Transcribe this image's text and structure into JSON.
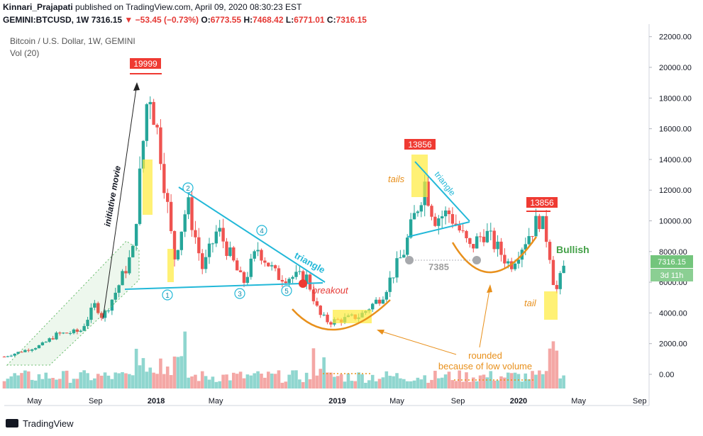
{
  "header": {
    "author": "Kinnari_Prajapati",
    "published": "published on TradingView.com, April 09, 2020 08:30:23 EST",
    "symbol": "GEMINI:BTCUSD, 1W",
    "price": "7316.15",
    "change": "▼ −53.45 (−0.73%)",
    "o_label": "O:",
    "o": "6773.55",
    "h_label": "H:",
    "h": "7468.42",
    "l_label": "L:",
    "l": "6771.01",
    "c_label": "C:",
    "c": "7316.15"
  },
  "subtitle": {
    "instrument": "Bitcoin / U.S. Dollar, 1W, GEMINI",
    "volume": "Vol (20)"
  },
  "footer": {
    "brand": "TradingView"
  },
  "colors": {
    "up": "#26a69a",
    "down": "#ef5350",
    "vol_up": "#8fd6cf",
    "vol_down": "#f4a7a5",
    "triangle": "#22b8d8",
    "annot": "#e8901c",
    "bullish": "#43a047",
    "highlight": "#ffeb3b"
  },
  "chart_data": {
    "type": "candlestick",
    "title": "Bitcoin / U.S. Dollar, 1W, GEMINI",
    "ylim": [
      -500,
      22500
    ],
    "y_ticks": [
      "22000.00",
      "20000.00",
      "18000.00",
      "16000.00",
      "14000.00",
      "12000.00",
      "10000.00",
      "8000.00",
      "6000.00",
      "4000.00",
      "2000.00",
      "0.00"
    ],
    "x_ticks": [
      "May",
      "Sep",
      "2018",
      "May",
      "2019",
      "May",
      "Sep",
      "2020",
      "May",
      "Sep"
    ],
    "last_price": "7316.15",
    "countdown": "3d 11h",
    "anchors": [
      {
        "date": "2017-03-01",
        "close": 1150
      },
      {
        "date": "2017-05-15",
        "close": 1900
      },
      {
        "date": "2017-06-15",
        "close": 2600
      },
      {
        "date": "2017-08-01",
        "close": 2800
      },
      {
        "date": "2017-09-01",
        "close": 4600
      },
      {
        "date": "2017-09-15",
        "close": 3700
      },
      {
        "date": "2017-10-15",
        "close": 5600
      },
      {
        "date": "2017-11-15",
        "close": 8000
      },
      {
        "date": "2017-12-17",
        "close": 19000
      },
      {
        "date": "2018-01-10",
        "close": 14500
      },
      {
        "date": "2018-02-06",
        "close": 7500
      },
      {
        "date": "2018-03-05",
        "close": 11200
      },
      {
        "date": "2018-04-05",
        "close": 6800
      },
      {
        "date": "2018-05-05",
        "close": 9500
      },
      {
        "date": "2018-06-25",
        "close": 5900
      },
      {
        "date": "2018-07-25",
        "close": 8200
      },
      {
        "date": "2018-09-01",
        "close": 6400
      },
      {
        "date": "2018-11-01",
        "close": 6300
      },
      {
        "date": "2018-11-25",
        "close": 3900
      },
      {
        "date": "2018-12-15",
        "close": 3400
      },
      {
        "date": "2019-02-15",
        "close": 3800
      },
      {
        "date": "2019-04-01",
        "close": 5100
      },
      {
        "date": "2019-05-15",
        "close": 8000
      },
      {
        "date": "2019-06-26",
        "close": 12500
      },
      {
        "date": "2019-07-15",
        "close": 10200
      },
      {
        "date": "2019-08-15",
        "close": 10500
      },
      {
        "date": "2019-09-25",
        "close": 8200
      },
      {
        "date": "2019-10-25",
        "close": 9300
      },
      {
        "date": "2019-12-15",
        "close": 7100
      },
      {
        "date": "2020-01-15",
        "close": 8800
      },
      {
        "date": "2020-02-13",
        "close": 10200
      },
      {
        "date": "2020-03-01",
        "close": 8600
      },
      {
        "date": "2020-03-15",
        "close": 5200
      },
      {
        "date": "2020-04-05",
        "close": 7316
      }
    ],
    "annotations": {
      "labels_red": [
        "19999",
        "13856",
        "13856"
      ],
      "tails": "tails",
      "tail": "tail",
      "triangle1": "triangle",
      "triangle2": "triangle",
      "breakout": "breakout",
      "initiative": "initiative movie",
      "level": "7385",
      "bullish": "Bullish",
      "rounded1": "rounded",
      "rounded2": "because of low volume",
      "circles": [
        "1",
        "2",
        "3",
        "4",
        "5"
      ]
    }
  }
}
